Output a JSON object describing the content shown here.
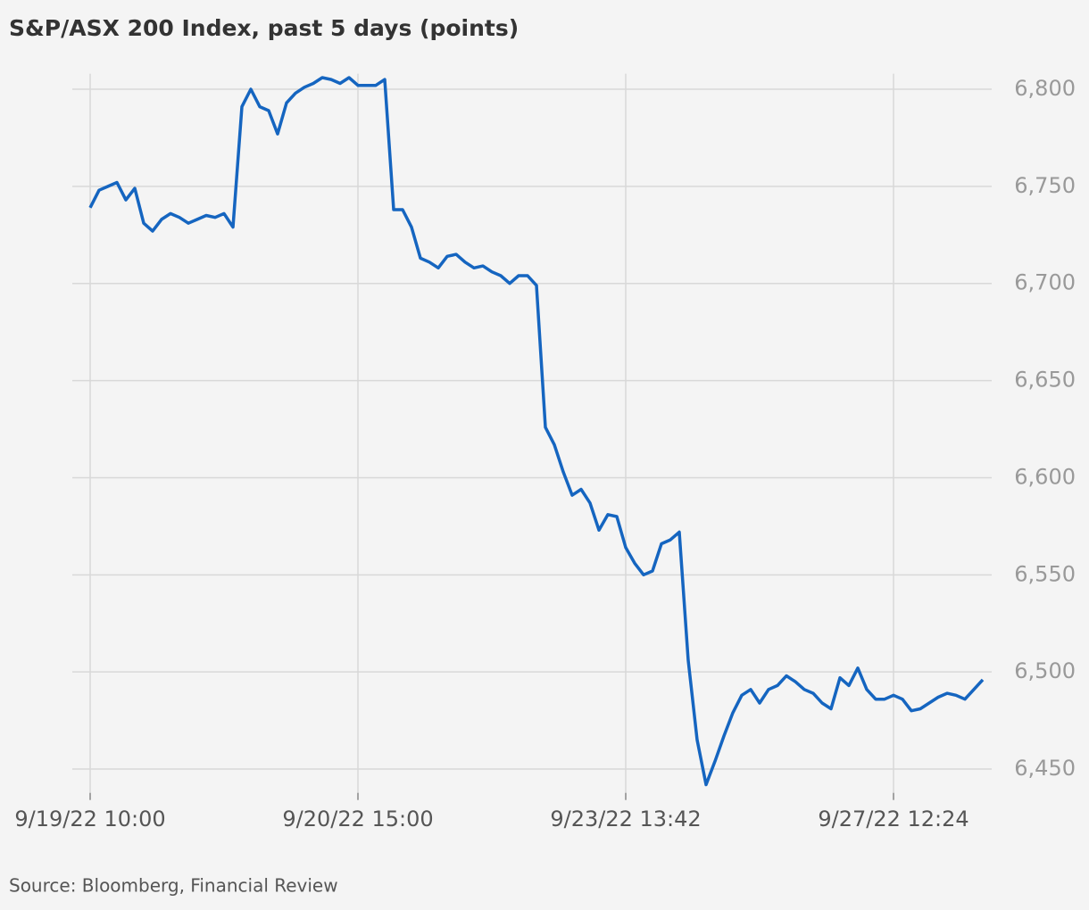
{
  "chart_data": {
    "type": "line",
    "title": "S&P/ASX 200 Index, past 5 days (points)",
    "source": "Source: Bloomberg, Financial Review",
    "x": [
      0,
      1,
      2,
      3,
      4,
      5,
      6,
      7,
      8,
      9,
      10,
      11,
      12,
      13,
      14,
      15,
      16,
      17,
      18,
      19,
      20,
      21,
      22,
      23,
      24,
      25,
      26,
      27,
      28,
      29,
      30,
      31,
      32,
      33,
      34,
      35,
      36,
      37,
      38,
      39,
      40,
      41,
      42,
      43,
      44,
      45,
      46,
      47,
      48,
      49,
      50,
      51,
      52,
      53,
      54,
      55,
      56,
      57,
      58,
      59,
      60,
      61,
      62,
      63,
      64,
      65,
      66,
      67,
      68,
      69,
      70,
      71,
      72,
      73,
      74,
      75,
      76,
      77,
      78,
      79,
      80,
      81,
      82,
      83,
      84,
      85,
      86,
      87,
      88,
      89,
      90,
      91,
      92,
      93,
      94,
      95,
      96,
      97,
      98,
      99,
      100
    ],
    "series": [
      {
        "name": "S&P/ASX 200",
        "color": "#1565c0",
        "values": [
          6739,
          6748,
          6750,
          6752,
          6743,
          6749,
          6731,
          6727,
          6733,
          6736,
          6734,
          6731,
          6733,
          6735,
          6734,
          6736,
          6729,
          6791,
          6800,
          6791,
          6789,
          6777,
          6793,
          6798,
          6801,
          6803,
          6806,
          6805,
          6803,
          6806,
          6802,
          6802,
          6802,
          6805,
          6738,
          6738,
          6729,
          6713,
          6711,
          6708,
          6714,
          6715,
          6711,
          6708,
          6709,
          6706,
          6704,
          6700,
          6704,
          6704,
          6699,
          6626,
          6617,
          6603,
          6591,
          6594,
          6587,
          6573,
          6581,
          6580,
          6564,
          6556,
          6550,
          6552,
          6566,
          6568,
          6572,
          6506,
          6465,
          6442,
          6454,
          6467,
          6479,
          6488,
          6491,
          6484,
          6491,
          6493,
          6498,
          6495,
          6491,
          6489,
          6484,
          6481,
          6497,
          6493,
          6502,
          6491,
          6486,
          6486,
          6488,
          6486,
          6480,
          6481,
          6484,
          6487,
          6489,
          6488,
          6486,
          6491,
          6496
        ]
      }
    ],
    "xlim": [
      -2,
      101
    ],
    "xticks": [
      {
        "value": 0,
        "label": "9/19/22 10:00"
      },
      {
        "value": 30,
        "label": "9/20/22 15:00"
      },
      {
        "value": 60,
        "label": "9/23/22 13:42"
      },
      {
        "value": 90,
        "label": "9/27/22 12:24"
      }
    ],
    "ylim": [
      6435,
      6808
    ],
    "yticks": [
      {
        "value": 6450,
        "label": "6,450"
      },
      {
        "value": 6500,
        "label": "6,500"
      },
      {
        "value": 6550,
        "label": "6,550"
      },
      {
        "value": 6600,
        "label": "6,600"
      },
      {
        "value": 6650,
        "label": "6,650"
      },
      {
        "value": 6700,
        "label": "6,700"
      },
      {
        "value": 6750,
        "label": "6,750"
      },
      {
        "value": 6800,
        "label": "6,800"
      }
    ],
    "grid": true
  }
}
